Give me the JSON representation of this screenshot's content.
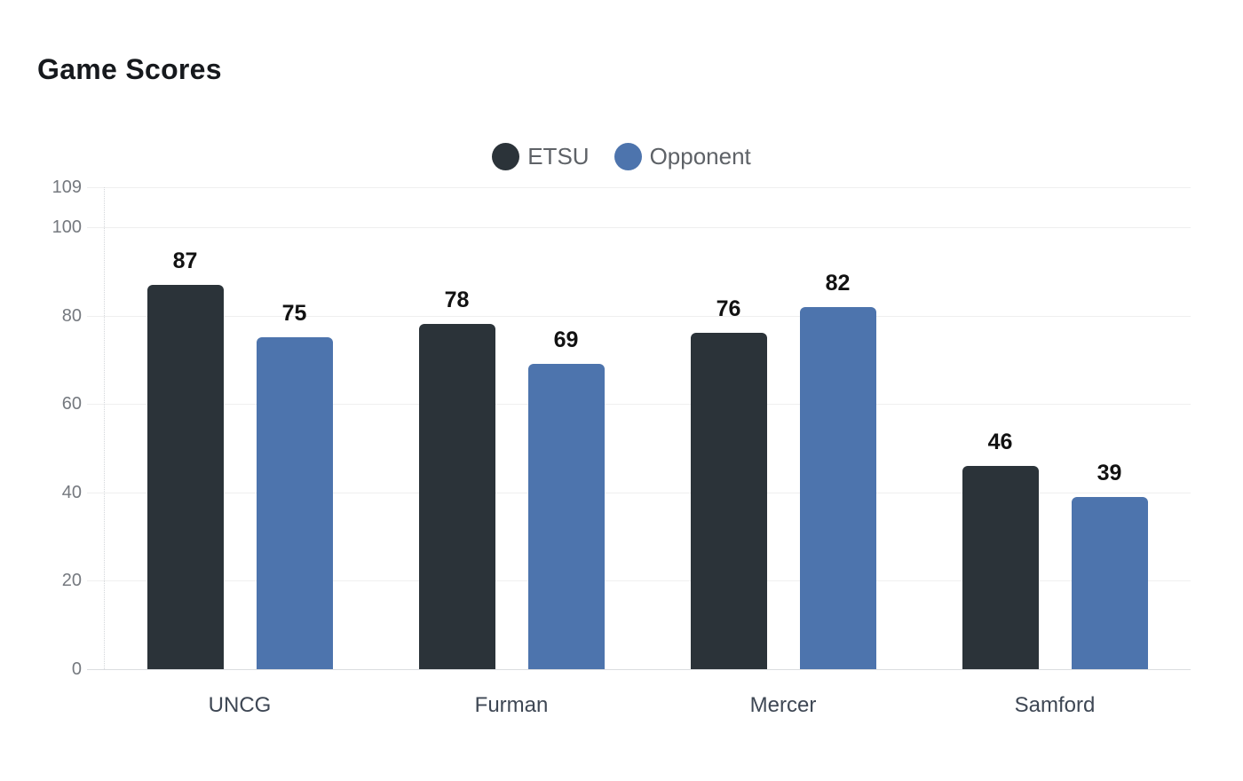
{
  "chart_data": {
    "type": "bar",
    "title": "Game Scores",
    "categories": [
      "UNCG",
      "Furman",
      "Mercer",
      "Samford"
    ],
    "series": [
      {
        "name": "ETSU",
        "color": "#2b3339",
        "values": [
          87,
          78,
          76,
          46
        ]
      },
      {
        "name": "Opponent",
        "color": "#4d74ad",
        "values": [
          75,
          69,
          82,
          39
        ]
      }
    ],
    "yticks": [
      0,
      20,
      40,
      60,
      80,
      100,
      109
    ],
    "ylim": [
      0,
      109
    ],
    "xlabel": "",
    "ylabel": "",
    "grid": true,
    "legend_position": "top-center",
    "value_labels": true,
    "colors": {
      "background": "#ffffff",
      "grid_line": "#efefef",
      "axis_line": "#dbdde0",
      "tick_text": "#75797f",
      "category_text": "#3e4754",
      "legend_text": "#5e6267",
      "value_label_text": "#121212",
      "title_text": "#16191d"
    }
  }
}
